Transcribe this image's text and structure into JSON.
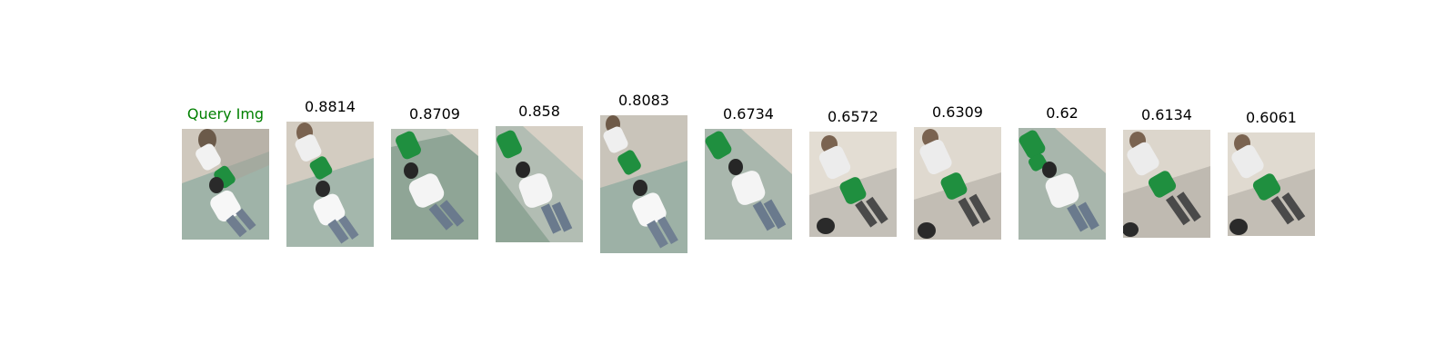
{
  "query": {
    "label": "Query Img",
    "label_color": "#008000"
  },
  "results": [
    {
      "score": "0.8814"
    },
    {
      "score": "0.8709"
    },
    {
      "score": "0.858"
    },
    {
      "score": "0.8083"
    },
    {
      "score": "0.6734"
    },
    {
      "score": "0.6572"
    },
    {
      "score": "0.6309"
    },
    {
      "score": "0.62"
    },
    {
      "score": "0.6134"
    },
    {
      "score": "0.6061"
    }
  ]
}
